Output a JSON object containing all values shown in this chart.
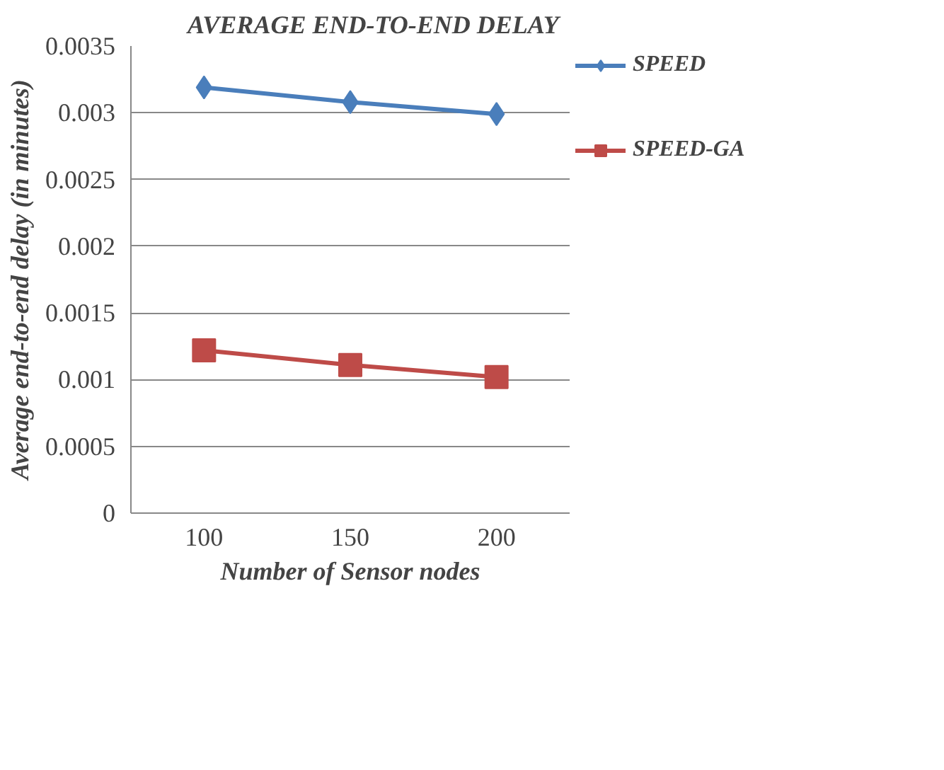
{
  "chart_data": {
    "type": "line",
    "title": "AVERAGE END-TO-END DELAY",
    "xlabel": "Number of Sensor nodes",
    "ylabel": "Average end-to-end delay (in minutes)",
    "categories": [
      "100",
      "150",
      "200"
    ],
    "series": [
      {
        "name": "SPEED",
        "color": "#4a7ebb",
        "marker": "diamond",
        "values": [
          0.00319,
          0.00308,
          0.00299
        ]
      },
      {
        "name": "SPEED-GA",
        "color": "#be4b48",
        "marker": "square",
        "values": [
          0.00122,
          0.00111,
          0.00102
        ]
      }
    ],
    "ylim": [
      0,
      0.0035
    ],
    "yticks": [
      0,
      0.0005,
      0.001,
      0.0015,
      0.002,
      0.0025,
      0.003,
      0.0035
    ],
    "grid": "y",
    "legend": "right",
    "line_style": "solid"
  }
}
